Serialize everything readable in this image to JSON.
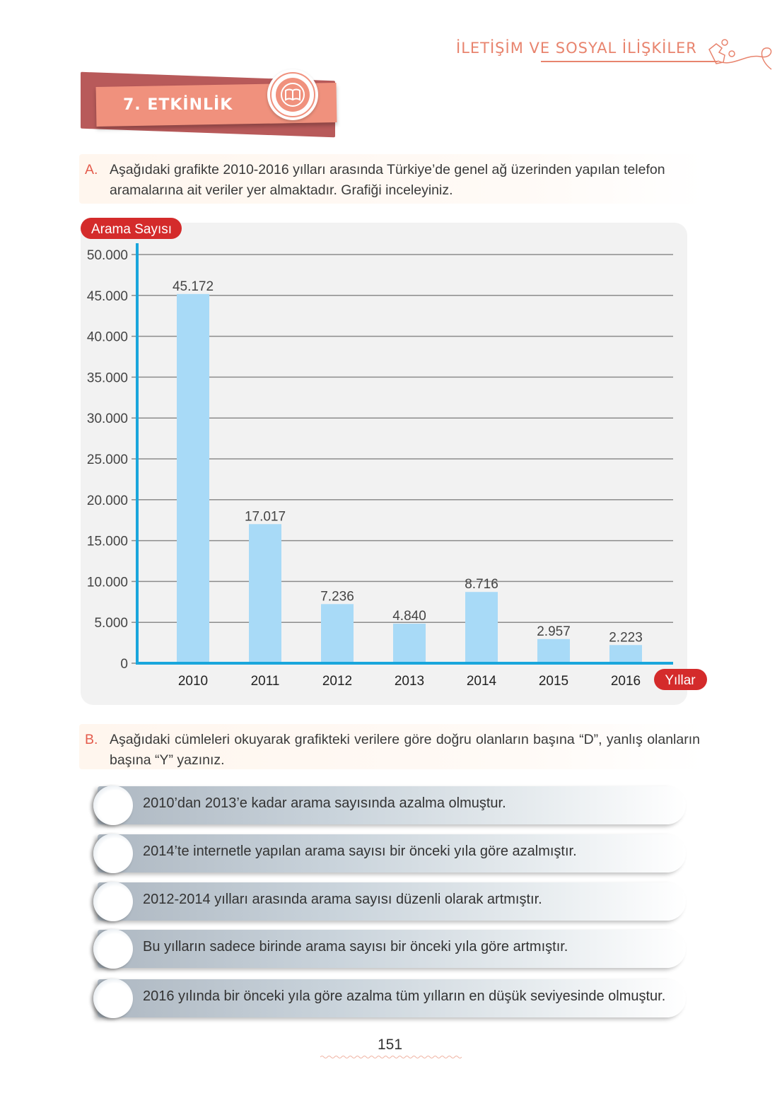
{
  "header": {
    "chapter_title": "İLETİŞİM VE SOSYAL İLİŞKİLER"
  },
  "activity": {
    "title": "7. ETKİNLİK"
  },
  "section_a": {
    "label": "A.",
    "text": "Aşağıdaki grafikte 2010-2016 yılları arasında Türkiye’de genel ağ üzerinden yapılan telefon aramalarına ait veriler yer almaktadır. Grafiği inceleyiniz."
  },
  "chart_data": {
    "type": "bar",
    "ylabel": "Arama Sayısı",
    "xlabel": "Yıllar",
    "categories": [
      "2010",
      "2011",
      "2012",
      "2013",
      "2014",
      "2015",
      "2016"
    ],
    "values": [
      45172,
      17017,
      7236,
      4840,
      8716,
      2957,
      2223
    ],
    "value_labels": [
      "45.172",
      "17.017",
      "7.236",
      "4.840",
      "8.716",
      "2.957",
      "2.223"
    ],
    "ylim": [
      0,
      50000
    ],
    "yticks": [
      0,
      5000,
      10000,
      15000,
      20000,
      25000,
      30000,
      35000,
      40000,
      45000,
      50000
    ],
    "ytick_labels": [
      "0",
      "5.000",
      "10.000",
      "15.000",
      "20.000",
      "25.000",
      "30.000",
      "35.000",
      "40.000",
      "45.000",
      "50.000"
    ],
    "grid": true,
    "colors": {
      "bar": "#a8daf7",
      "axis": "#1aa6dc",
      "grid": "#8c8c8c",
      "badge": "#d42b2b"
    }
  },
  "section_b": {
    "label": "B.",
    "text": "Aşağıdaki cümleleri okuyarak grafikteki verilere göre doğru olanların başına “D”, yanlış olanların başına “Y” yazınız."
  },
  "statements": [
    "2010’dan 2013’e kadar arama sayısında azalma olmuştur.",
    "2014’te internetle yapılan arama sayısı bir önceki yıla göre azalmıştır.",
    "2012-2014 yılları arasında arama sayısı düzenli olarak artmıştır.",
    "Bu yılların sadece birinde arama sayısı bir önceki yıla göre artmıştır.",
    "2016 yılında bir önceki yıla göre azalma tüm yılların en düşük seviyesinde olmuştur."
  ],
  "page_number": "151"
}
